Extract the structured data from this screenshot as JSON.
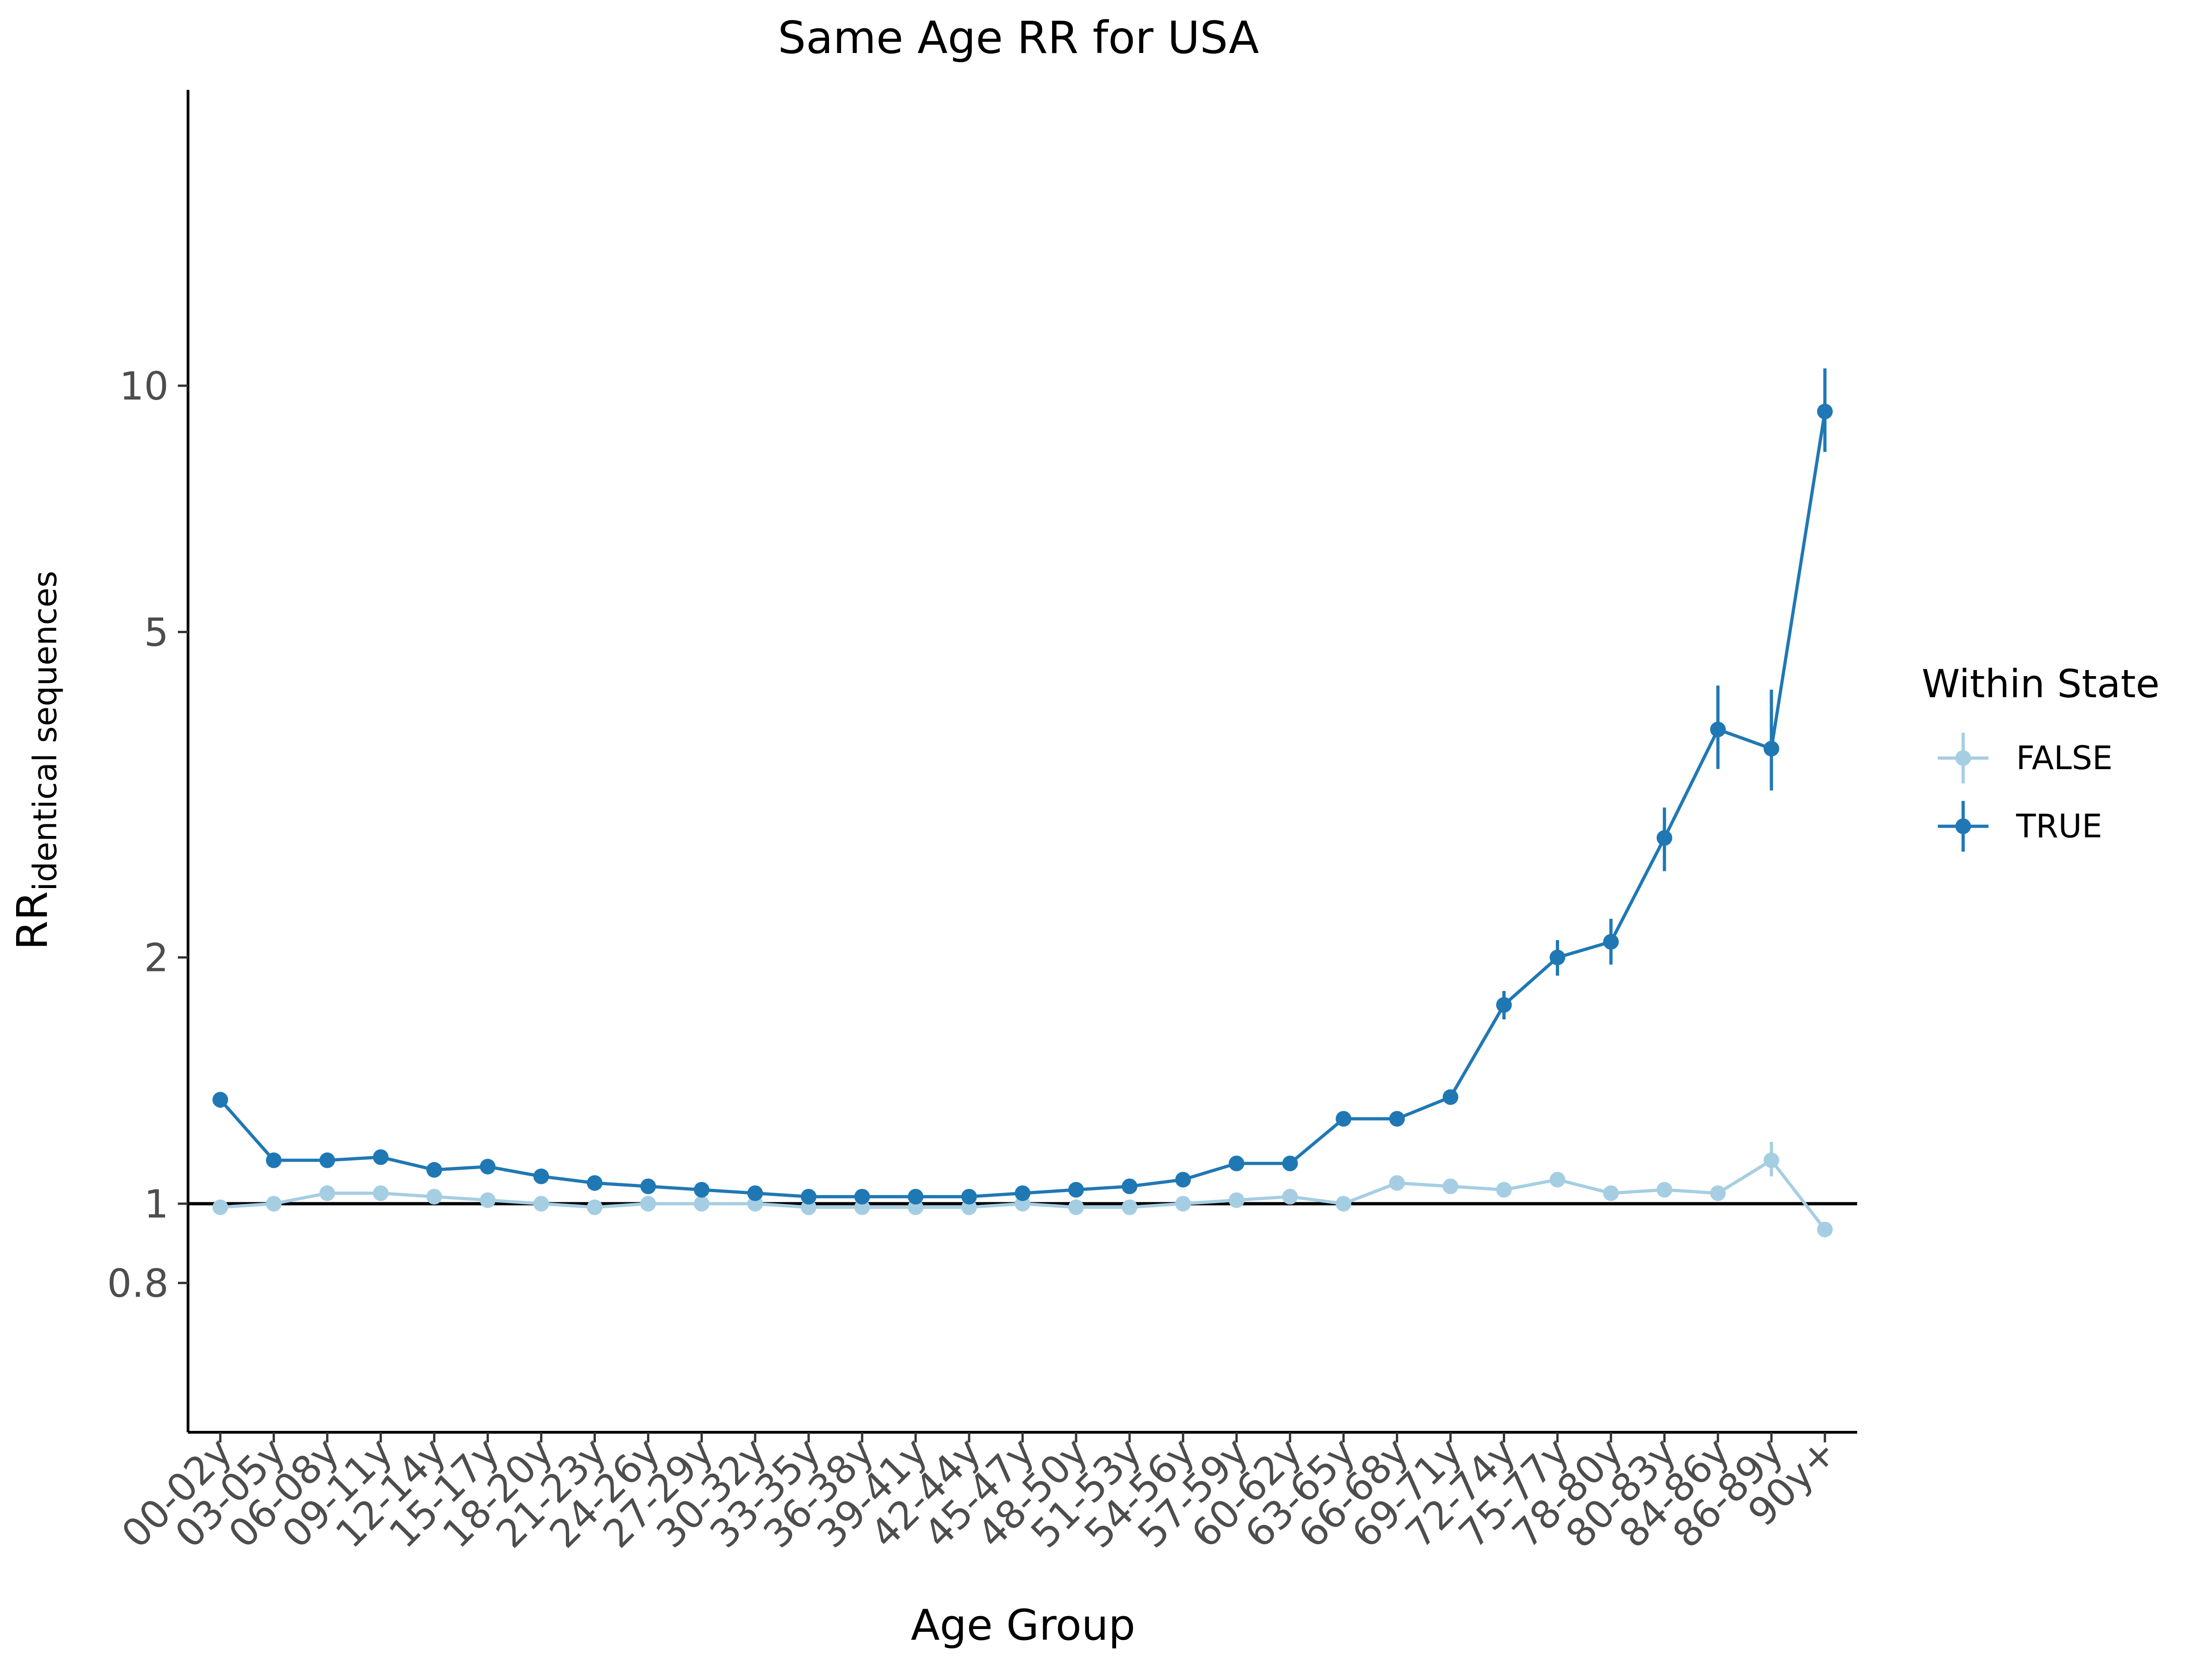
{
  "chart_data": {
    "type": "line",
    "title": "Same Age RR for USA",
    "xlabel": "Age Group",
    "ylabel": {
      "main": "RR",
      "subscript": "identical sequences"
    },
    "y_scale": "log",
    "ylim": [
      0.6,
      20
    ],
    "y_ticks": [
      0.8,
      1,
      2,
      5,
      10
    ],
    "y_tick_labels": [
      "0.8",
      "1",
      "2",
      "5",
      "10"
    ],
    "reference_line": 1,
    "categories": [
      "00-02y",
      "03-05y",
      "06-08y",
      "09-11y",
      "12-14y",
      "15-17y",
      "18-20y",
      "21-23y",
      "24-26y",
      "27-29y",
      "30-32y",
      "33-35y",
      "36-38y",
      "39-41y",
      "42-44y",
      "45-47y",
      "48-50y",
      "51-53y",
      "54-56y",
      "57-59y",
      "60-62y",
      "63-65y",
      "66-68y",
      "69-71y",
      "72-74y",
      "75-77y",
      "78-80y",
      "80-83y",
      "84-86y",
      "86-89y",
      "90y+"
    ],
    "legend": {
      "title": "Within State",
      "position": "right"
    },
    "series": [
      {
        "name": "FALSE",
        "color": "#a6cee3",
        "values": [
          0.99,
          1.0,
          1.03,
          1.03,
          1.02,
          1.01,
          1.0,
          0.99,
          1.0,
          1.0,
          1.0,
          0.99,
          0.99,
          0.99,
          0.99,
          1.0,
          0.99,
          0.99,
          1.0,
          1.01,
          1.02,
          1.0,
          1.06,
          1.05,
          1.04,
          1.07,
          1.03,
          1.04,
          1.03,
          1.13,
          0.93
        ],
        "err_low": [
          0.98,
          0.99,
          1.02,
          1.02,
          1.01,
          1.0,
          0.99,
          0.98,
          0.99,
          0.99,
          0.99,
          0.98,
          0.98,
          0.98,
          0.98,
          0.99,
          0.98,
          0.98,
          0.99,
          1.0,
          1.01,
          0.99,
          1.05,
          1.04,
          1.03,
          1.06,
          1.02,
          1.03,
          1.01,
          1.08,
          0.92
        ],
        "err_high": [
          1.0,
          1.01,
          1.04,
          1.04,
          1.03,
          1.02,
          1.01,
          1.0,
          1.01,
          1.01,
          1.01,
          1.0,
          1.0,
          1.0,
          1.0,
          1.01,
          1.0,
          1.0,
          1.01,
          1.02,
          1.03,
          1.01,
          1.07,
          1.06,
          1.05,
          1.08,
          1.04,
          1.05,
          1.05,
          1.19,
          0.94
        ]
      },
      {
        "name": "TRUE",
        "color": "#1f78b4",
        "values": [
          1.34,
          1.13,
          1.13,
          1.14,
          1.1,
          1.11,
          1.08,
          1.06,
          1.05,
          1.04,
          1.03,
          1.02,
          1.02,
          1.02,
          1.02,
          1.03,
          1.04,
          1.05,
          1.07,
          1.12,
          1.12,
          1.27,
          1.27,
          1.35,
          1.75,
          2.0,
          2.09,
          2.8,
          3.8,
          3.6,
          9.3
        ],
        "err_low": [
          1.31,
          1.12,
          1.12,
          1.13,
          1.09,
          1.1,
          1.07,
          1.05,
          1.04,
          1.03,
          1.02,
          1.01,
          1.01,
          1.01,
          1.01,
          1.02,
          1.03,
          1.04,
          1.06,
          1.11,
          1.11,
          1.26,
          1.26,
          1.33,
          1.68,
          1.9,
          1.96,
          2.55,
          3.4,
          3.2,
          8.3
        ],
        "err_high": [
          1.37,
          1.14,
          1.14,
          1.15,
          1.11,
          1.12,
          1.09,
          1.07,
          1.06,
          1.05,
          1.04,
          1.03,
          1.03,
          1.03,
          1.03,
          1.04,
          1.05,
          1.06,
          1.08,
          1.13,
          1.13,
          1.28,
          1.28,
          1.37,
          1.82,
          2.1,
          2.23,
          3.05,
          4.3,
          4.25,
          10.5
        ]
      }
    ]
  }
}
